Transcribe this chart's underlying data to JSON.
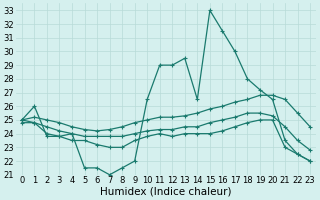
{
  "xlabel": "Humidex (Indice chaleur)",
  "x_values": [
    0,
    1,
    2,
    3,
    4,
    5,
    6,
    7,
    8,
    9,
    10,
    11,
    12,
    13,
    14,
    15,
    16,
    17,
    18,
    19,
    20,
    21,
    22,
    23
  ],
  "line1_y": [
    25,
    26,
    23.8,
    23.8,
    24,
    21.5,
    21.5,
    21,
    21.5,
    22,
    26.5,
    29,
    29,
    29.5,
    26.5,
    33,
    31.5,
    30,
    28,
    27.2,
    26.5,
    23.5,
    22.5,
    22
  ],
  "line2_y": [
    25,
    25.2,
    25,
    24.8,
    24.5,
    24.3,
    24.2,
    24.3,
    24.5,
    24.8,
    25,
    25.2,
    25.2,
    25.3,
    25.5,
    25.8,
    26,
    26.3,
    26.5,
    26.8,
    26.8,
    26.5,
    25.5,
    24.5
  ],
  "line3_y": [
    24.8,
    24.8,
    24.5,
    24.2,
    24,
    23.8,
    23.8,
    23.8,
    23.8,
    24,
    24.2,
    24.3,
    24.3,
    24.5,
    24.5,
    24.8,
    25,
    25.2,
    25.5,
    25.5,
    25.3,
    24.5,
    23.5,
    22.8
  ],
  "line4_y": [
    25,
    24.8,
    24,
    23.8,
    23.5,
    23.5,
    23.2,
    23,
    23,
    23.5,
    23.8,
    24,
    23.8,
    24,
    24,
    24,
    24.2,
    24.5,
    24.8,
    25,
    25,
    23,
    22.5,
    22
  ],
  "ylim": [
    21,
    33.5
  ],
  "yticks": [
    21,
    22,
    23,
    24,
    25,
    26,
    27,
    28,
    29,
    30,
    31,
    32,
    33
  ],
  "xticks": [
    0,
    1,
    2,
    3,
    4,
    5,
    6,
    7,
    8,
    9,
    10,
    11,
    12,
    13,
    14,
    15,
    16,
    17,
    18,
    19,
    20,
    21,
    22,
    23
  ],
  "line_color": "#1a7a6e",
  "bg_color": "#d5f0ee",
  "grid_color": "#b8dbd8",
  "tick_fontsize": 6,
  "label_fontsize": 7.5
}
